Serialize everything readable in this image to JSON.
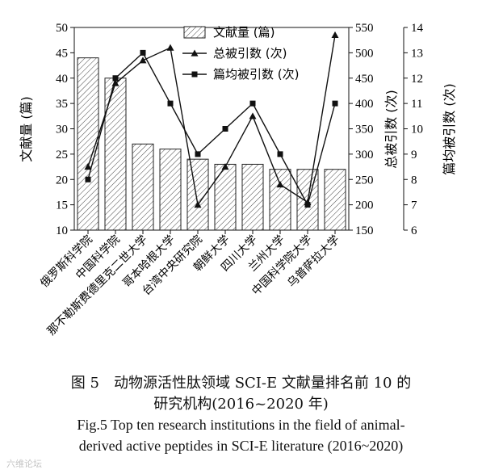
{
  "chart_data": {
    "type": "bar",
    "categories": [
      "俄罗斯科学院",
      "中国科学院",
      "那不勒斯费德里克二世大学",
      "哥本哈根大学",
      "台湾中央研究院",
      "朝鲜大学",
      "四川大学",
      "兰州大学",
      "中国科学院大学",
      "乌普萨拉大学"
    ],
    "series": [
      {
        "name": "文献量 (篇)",
        "type": "bar",
        "axis": "left",
        "values": [
          44,
          40,
          27,
          26,
          24,
          23,
          23,
          22,
          22,
          22
        ]
      },
      {
        "name": "总被引数 (次)",
        "type": "line",
        "marker": "triangle",
        "axis": "right1",
        "values": [
          275,
          440,
          485,
          510,
          200,
          275,
          375,
          240,
          205,
          535
        ]
      },
      {
        "name": "篇均被引数 (次)",
        "type": "line",
        "marker": "square",
        "axis": "right2",
        "values": [
          8,
          12,
          13,
          11,
          9,
          10,
          11,
          9,
          7,
          11
        ]
      }
    ],
    "axes": {
      "left": {
        "label": "文献量 (篇)",
        "min": 10,
        "max": 50,
        "ticks": [
          "10",
          "15",
          "20",
          "25",
          "30",
          "35",
          "40",
          "45",
          "50"
        ]
      },
      "right1": {
        "label": "总被引数 (次)",
        "min": 150,
        "max": 550,
        "ticks": [
          "150",
          "200",
          "250",
          "300",
          "350",
          "400",
          "450",
          "500",
          "550"
        ]
      },
      "right2": {
        "label": "篇均被引数 (次)",
        "min": 6,
        "max": 14,
        "ticks": [
          "6",
          "7",
          "8",
          "9",
          "10",
          "11",
          "12",
          "13",
          "14"
        ]
      }
    },
    "legend_position": "top-center",
    "grid": false
  },
  "caption": {
    "cn_line1": "图 5　动物源活性肽领域 SCI-E 文献量排名前 10 的",
    "cn_line2": "研究机构(2016~2020 年)",
    "en_line1": "Fig.5    Top ten research institutions in the field of animal-",
    "en_line2": "derived active peptides in SCI-E literature (2016~2020)"
  },
  "watermark": "六维论坛"
}
